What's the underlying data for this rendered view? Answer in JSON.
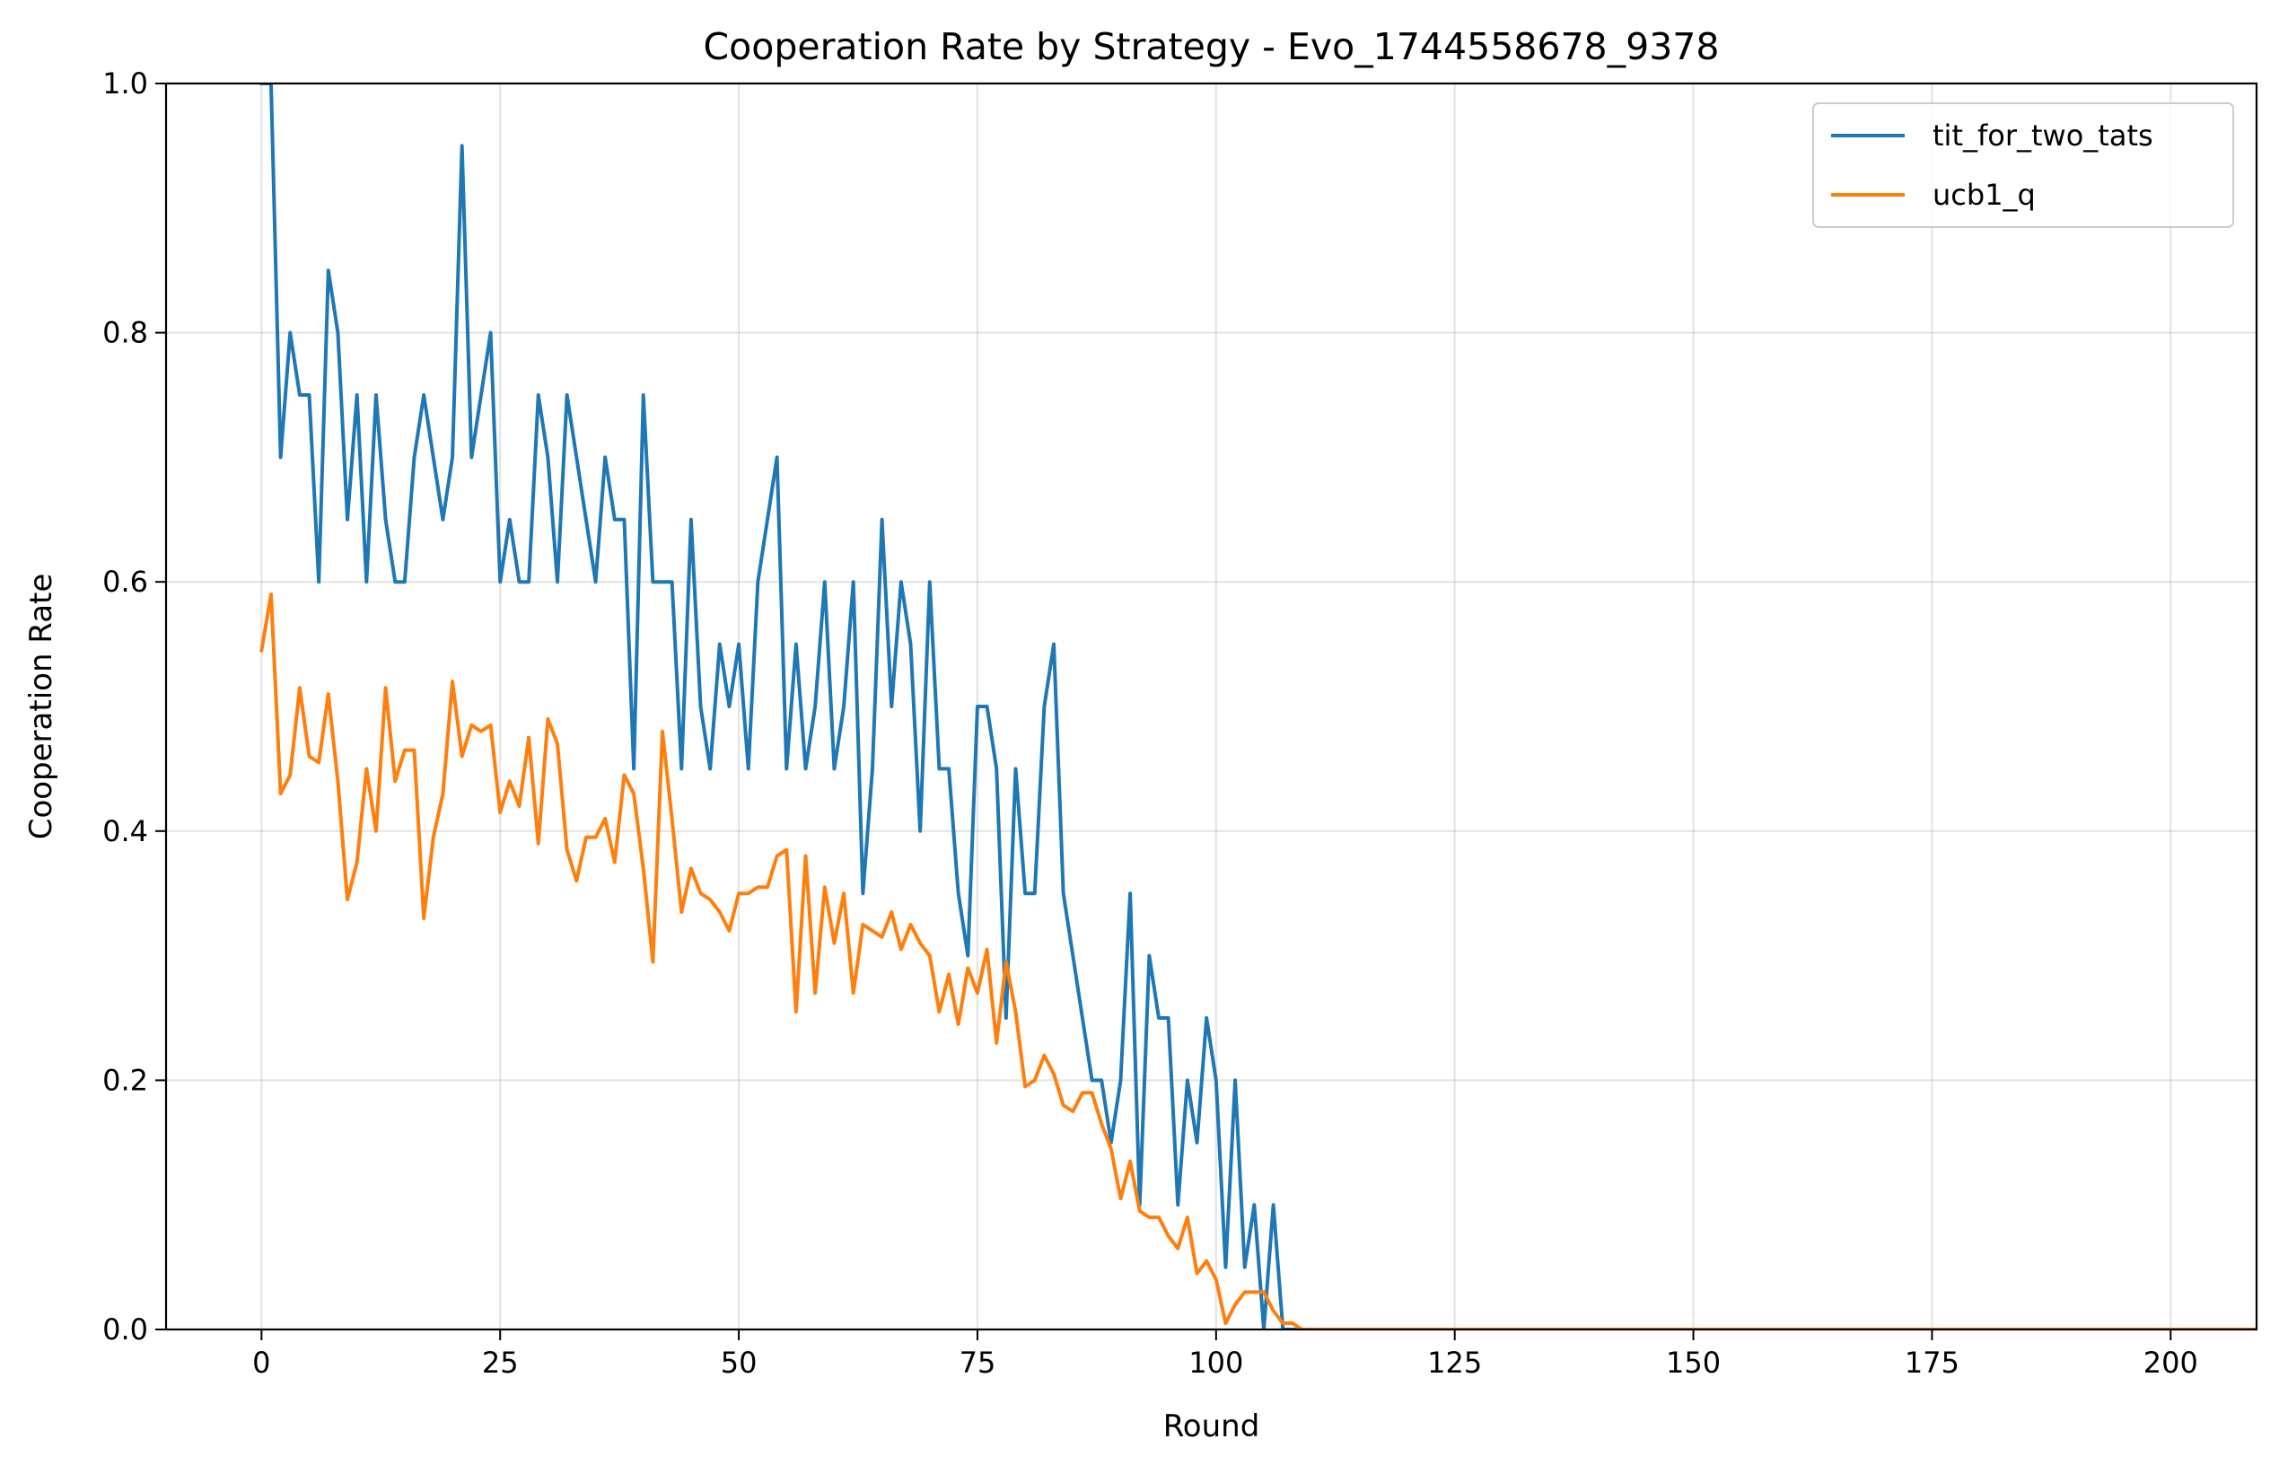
{
  "chart_data": {
    "type": "line",
    "title": "Cooperation Rate by Strategy - Evo_1744558678_9378",
    "xlabel": "Round",
    "ylabel": "Cooperation Rate",
    "xlim": [
      -10,
      209
    ],
    "ylim": [
      0.0,
      1.0
    ],
    "x_ticks": [
      0,
      25,
      50,
      75,
      100,
      125,
      150,
      175,
      200
    ],
    "y_ticks": [
      0.0,
      0.2,
      0.4,
      0.6,
      0.8,
      1.0
    ],
    "x_tick_labels": [
      "0",
      "25",
      "50",
      "75",
      "100",
      "125",
      "150",
      "175",
      "200"
    ],
    "y_tick_labels": [
      "0.0",
      "0.2",
      "0.4",
      "0.6",
      "0.8",
      "1.0"
    ],
    "grid": true,
    "legend_position": "top-right",
    "series": [
      {
        "name": "tit_for_two_tats",
        "color": "#1f77b4",
        "x_start": 0,
        "values": [
          1.0,
          1.0,
          0.7,
          0.8,
          0.75,
          0.75,
          0.6,
          0.85,
          0.8,
          0.65,
          0.75,
          0.6,
          0.75,
          0.65,
          0.6,
          0.6,
          0.7,
          0.75,
          0.7,
          0.65,
          0.7,
          0.95,
          0.7,
          0.75,
          0.8,
          0.6,
          0.65,
          0.6,
          0.6,
          0.75,
          0.7,
          0.6,
          0.75,
          0.7,
          0.65,
          0.6,
          0.7,
          0.65,
          0.65,
          0.45,
          0.75,
          0.6,
          0.6,
          0.6,
          0.45,
          0.65,
          0.5,
          0.45,
          0.55,
          0.5,
          0.55,
          0.45,
          0.6,
          0.65,
          0.7,
          0.45,
          0.55,
          0.45,
          0.5,
          0.6,
          0.45,
          0.5,
          0.6,
          0.35,
          0.45,
          0.65,
          0.5,
          0.6,
          0.55,
          0.4,
          0.6,
          0.45,
          0.45,
          0.35,
          0.3,
          0.5,
          0.5,
          0.45,
          0.25,
          0.45,
          0.35,
          0.35,
          0.5,
          0.55,
          0.35,
          0.3,
          0.25,
          0.2,
          0.2,
          0.15,
          0.2,
          0.35,
          0.1,
          0.3,
          0.25,
          0.25,
          0.1,
          0.2,
          0.15,
          0.25,
          0.2,
          0.05,
          0.2,
          0.05,
          0.1,
          0.0,
          0.1,
          0.0,
          0.0,
          0.0,
          0.0,
          0.0,
          0.0,
          0.0,
          0.0,
          0.0,
          0.0,
          0.0,
          0.0,
          0.0,
          0.0,
          0.0,
          0.0,
          0.0,
          0.0,
          0.0,
          0.0,
          0.0,
          0.0,
          0.0,
          0.0,
          0.0,
          0.0,
          0.0,
          0.0,
          0.0,
          0.0,
          0.0,
          0.0,
          0.0,
          0.0,
          0.0,
          0.0,
          0.0,
          0.0,
          0.0,
          0.0,
          0.0,
          0.0,
          0.0,
          0.0,
          0.0,
          0.0,
          0.0,
          0.0,
          0.0,
          0.0,
          0.0,
          0.0,
          0.0,
          0.0,
          0.0,
          0.0,
          0.0,
          0.0,
          0.0,
          0.0,
          0.0,
          0.0,
          0.0,
          0.0,
          0.0,
          0.0,
          0.0,
          0.0,
          0.0,
          0.0,
          0.0,
          0.0,
          0.0,
          0.0,
          0.0,
          0.0,
          0.0,
          0.0,
          0.0,
          0.0,
          0.0,
          0.0,
          0.0,
          0.0,
          0.0,
          0.0,
          0.0,
          0.0,
          0.0,
          0.0,
          0.0,
          0.0,
          0.0,
          0.0,
          0.0,
          0.0,
          0.0,
          0.0,
          0.0
        ]
      },
      {
        "name": "ucb1_q",
        "color": "#ff7f0e",
        "x_start": 0,
        "values": [
          0.545,
          0.59,
          0.43,
          0.445,
          0.515,
          0.46,
          0.455,
          0.51,
          0.44,
          0.345,
          0.375,
          0.45,
          0.4,
          0.515,
          0.44,
          0.465,
          0.465,
          0.33,
          0.395,
          0.43,
          0.52,
          0.46,
          0.485,
          0.48,
          0.485,
          0.415,
          0.44,
          0.42,
          0.475,
          0.39,
          0.49,
          0.47,
          0.385,
          0.36,
          0.395,
          0.395,
          0.41,
          0.375,
          0.445,
          0.43,
          0.37,
          0.295,
          0.48,
          0.41,
          0.335,
          0.37,
          0.35,
          0.345,
          0.335,
          0.32,
          0.35,
          0.35,
          0.355,
          0.355,
          0.38,
          0.385,
          0.255,
          0.38,
          0.27,
          0.355,
          0.31,
          0.35,
          0.27,
          0.325,
          0.32,
          0.315,
          0.335,
          0.305,
          0.325,
          0.31,
          0.3,
          0.255,
          0.285,
          0.245,
          0.29,
          0.27,
          0.305,
          0.23,
          0.295,
          0.255,
          0.195,
          0.2,
          0.22,
          0.205,
          0.18,
          0.175,
          0.19,
          0.19,
          0.165,
          0.145,
          0.105,
          0.135,
          0.095,
          0.09,
          0.09,
          0.075,
          0.065,
          0.09,
          0.045,
          0.055,
          0.04,
          0.005,
          0.02,
          0.03,
          0.03,
          0.03,
          0.015,
          0.005,
          0.005,
          0.0,
          0.0,
          0.0,
          0.0,
          0.0,
          0.0,
          0.0,
          0.0,
          0.0,
          0.0,
          0.0,
          0.0,
          0.0,
          0.0,
          0.0,
          0.0,
          0.0,
          0.0,
          0.0,
          0.0,
          0.0,
          0.0,
          0.0,
          0.0,
          0.0,
          0.0,
          0.0,
          0.0,
          0.0,
          0.0,
          0.0,
          0.0,
          0.0,
          0.0,
          0.0,
          0.0,
          0.0,
          0.0,
          0.0,
          0.0,
          0.0,
          0.0,
          0.0,
          0.0,
          0.0,
          0.0,
          0.0,
          0.0,
          0.0,
          0.0,
          0.0,
          0.0,
          0.0,
          0.0,
          0.0,
          0.0,
          0.0,
          0.0,
          0.0,
          0.0,
          0.0,
          0.0,
          0.0,
          0.0,
          0.0,
          0.0,
          0.0,
          0.0,
          0.0,
          0.0,
          0.0,
          0.0,
          0.0,
          0.0,
          0.0,
          0.0,
          0.0,
          0.0,
          0.0,
          0.0,
          0.0,
          0.0,
          0.0,
          0.0,
          0.0,
          0.0,
          0.0,
          0.0,
          0.0,
          0.0,
          0.0,
          0.0,
          0.0,
          0.0,
          0.0,
          0.0,
          0.0,
          0.0,
          0.0,
          0.0,
          0.0,
          0.0
        ]
      }
    ]
  }
}
